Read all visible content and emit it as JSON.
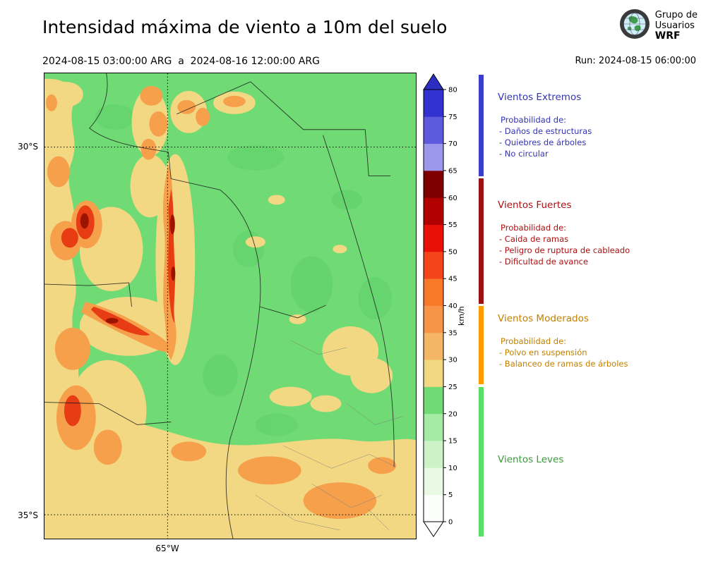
{
  "header": {
    "title": "Intensidad máxima de viento a 10m del suelo",
    "period": "2024-08-15 03:00:00 ARG  a  2024-08-16 12:00:00 ARG",
    "run": "Run: 2024-08-15 06:00:00",
    "logo": {
      "line1": "Grupo de",
      "line2": "Usuarios",
      "line3": "WRF"
    }
  },
  "map": {
    "lat_labels": [
      "30°S",
      "35°S"
    ],
    "lon_labels": [
      "65°W"
    ]
  },
  "colorbar": {
    "unit": "km/h",
    "ticks": [
      "0",
      "5",
      "10",
      "15",
      "20",
      "25",
      "30",
      "35",
      "40",
      "45",
      "50",
      "55",
      "60",
      "65",
      "70",
      "75",
      "80"
    ],
    "segment_colors_bottom_to_top": [
      "#fcfefb",
      "#e8f9e4",
      "#cdf2c8",
      "#a5eaa5",
      "#70db75",
      "#f2d883",
      "#f4b564",
      "#f79446",
      "#f87a28",
      "#f4441a",
      "#e81007",
      "#b20000",
      "#7e0000",
      "#9b97ea",
      "#5d5ade",
      "#3132cf"
    ],
    "over_color": "#2b2ec0",
    "under_color": "#ffffff"
  },
  "legend": [
    {
      "title": "Vientos Extremos",
      "bar_color": "#3c3ccf",
      "text_color": "#3333b3",
      "intro": "Probabilidad de:",
      "items": [
        "- Daños de estructuras",
        "- Quiebres de árboles",
        "- No circular"
      ]
    },
    {
      "title": "Vientos Fuertes",
      "bar_color": "#9b1010",
      "text_color": "#aa1111",
      "intro": "Probabilidad de:",
      "items": [
        "- Caida de ramas",
        "- Peligro de ruptura de cableado",
        "- Dificultad de avance"
      ]
    },
    {
      "title": "Vientos Moderados",
      "bar_color": "#ff9d00",
      "text_color": "#c08000",
      "intro": "Probabilidad de:",
      "items": [
        "- Polvo en suspensión",
        "- Balanceo de ramas de árboles"
      ]
    },
    {
      "title": "Vientos Leves",
      "bar_color": "#5ade68",
      "text_color": "#3c9a3c",
      "intro": "",
      "items": []
    }
  ]
}
